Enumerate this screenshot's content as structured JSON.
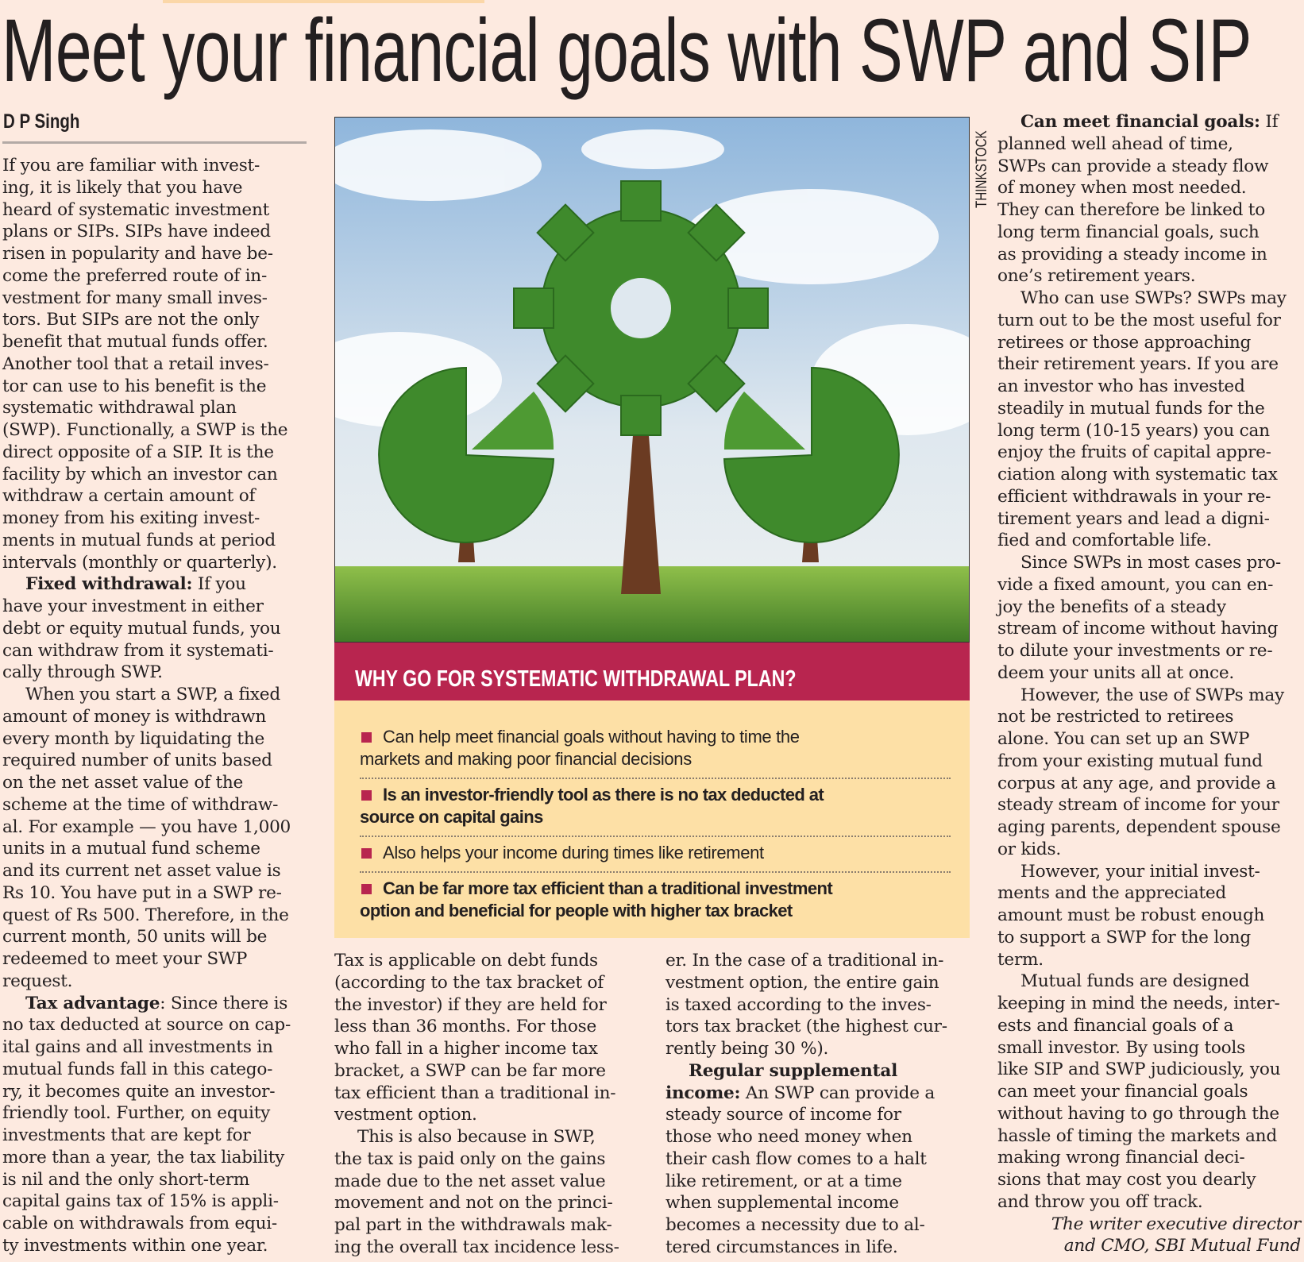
{
  "headline": "Meet your financial goals with SWP and SIP",
  "byline": "D P Singh",
  "photo_credit": "THINKSTOCK",
  "photo_description_icon": "gear-tree-illustration",
  "colors": {
    "background": "#fdeae0",
    "band": "#b8254f",
    "box": "#fde0a6"
  },
  "sidebar_box": {
    "title": "WHY GO FOR SYSTEMATIC WITHDRAWAL PLAN?",
    "bullets": [
      {
        "bold": false,
        "lines": [
          "Can help meet financial goals without having to time the",
          "markets and making poor financial decisions"
        ]
      },
      {
        "bold": true,
        "lines": [
          "Is an investor-friendly tool as there is no tax deducted at",
          "source on capital gains"
        ]
      },
      {
        "bold": false,
        "lines": [
          "Also helps your income during times like retirement"
        ]
      },
      {
        "bold": true,
        "lines": [
          "Can be far more tax efficient than a traditional investment",
          "option and beneficial for people with higher tax bracket"
        ]
      }
    ]
  },
  "columns": {
    "left": [
      {
        "continued": true,
        "lines": [
          "If you are familiar with invest-",
          "ing, it is likely that you have",
          "heard of systematic investment",
          "plans or SIPs. SIPs have indeed",
          "risen in popularity and have be-",
          "come the preferred route of in-",
          "vestment for many small inves-",
          "tors. But SIPs are not the only",
          "benefit that mutual funds offer.",
          "Another tool that a retail inves-",
          "tor can use to his benefit is the",
          "systematic withdrawal plan",
          "(SWP). Functionally, a SWP is the",
          "direct opposite of a SIP. It is the",
          "facility by which an investor can",
          "withdraw a certain amount of",
          "money from his exiting invest-",
          "ments in mutual funds at period",
          "intervals (monthly or quarterly)."
        ]
      },
      {
        "lines": [
          {
            "b": "Fixed withdrawal:",
            "t": " If you"
          },
          "have your investment in either",
          "debt or equity mutual funds, you",
          "can withdraw from it systemati-",
          "cally through SWP."
        ]
      },
      {
        "lines": [
          "When you start a SWP, a fixed",
          "amount of money is withdrawn",
          "every month by liquidating the",
          "required number of units based",
          "on the net asset value of the",
          "scheme at the time of withdraw-",
          "al. For example — you have 1,000",
          "units in a mutual fund scheme",
          "and its current net asset value is",
          "Rs 10. You have put in a SWP re-",
          "quest of Rs 500. Therefore, in the",
          "current month, 50 units will be",
          "redeemed to meet your SWP",
          "request."
        ]
      },
      {
        "lines": [
          {
            "b": "Tax advantage",
            "t": ": Since there is"
          },
          "no tax deducted at source on cap-",
          "ital gains and all investments in",
          "mutual funds fall in this catego-",
          "ry, it becomes quite an investor-",
          "friendly tool. Further, on equity",
          "investments that are kept for",
          "more than a year, the tax liability",
          "is nil and the only short-term",
          "capital gains tax of 15% is appli-",
          "cable on withdrawals from equi-",
          "ty investments within one year."
        ]
      }
    ],
    "midA": [
      {
        "continued": true,
        "lines": [
          "Tax is applicable on debt funds",
          "(according to the tax bracket of",
          "the investor) if they are held for",
          "less than 36 months. For those",
          "who fall in a higher income tax",
          "bracket, a SWP can be far more",
          "tax efficient than a traditional in-",
          "vestment option."
        ]
      },
      {
        "lines": [
          "This is also because in SWP,",
          "the tax is paid only on the gains",
          "made due to the net asset value",
          "movement and not on the princi-",
          "pal part in the withdrawals mak-",
          "ing the overall tax incidence less-"
        ]
      }
    ],
    "midB": [
      {
        "continued": true,
        "lines": [
          "er. In the case of a traditional in-",
          "vestment option, the entire gain",
          "is taxed according to the inves-",
          "tors tax bracket (the highest cur-",
          "rently being 30 %)."
        ]
      },
      {
        "lines": [
          {
            "b": "Regular supplemental",
            "t": ""
          },
          {
            "b": "income:",
            "t": " An SWP can provide a"
          },
          "steady source of income for",
          "those who need money when",
          "their cash flow comes to a halt",
          "like retirement, or at a time",
          "when supplemental income",
          "becomes a necessity due to al-",
          "tered circumstances in life."
        ]
      }
    ],
    "right": [
      {
        "lines": [
          {
            "b": "Can meet financial goals:",
            "t": " If"
          },
          "planned well ahead of time,",
          "SWPs can provide a steady flow",
          "of money when most needed.",
          "They can therefore be linked to",
          "long term financial goals, such",
          "as providing a steady income in",
          "one’s retirement years."
        ]
      },
      {
        "lines": [
          "Who can use SWPs? SWPs may",
          "turn out to be the most useful for",
          "retirees or those approaching",
          "their retirement years. If you are",
          "an investor who has invested",
          "steadily in mutual funds for the",
          "long term (10-15 years) you can",
          "enjoy the fruits of capital appre-",
          "ciation along with systematic tax",
          "efficient withdrawals in your re-",
          "tirement years and lead a digni-",
          "fied and comfortable life."
        ]
      },
      {
        "lines": [
          "Since SWPs in most cases pro-",
          "vide a fixed amount, you can en-",
          "joy the benefits of a steady",
          "stream of income without having",
          "to dilute your investments or re-",
          "deem your units all at once."
        ]
      },
      {
        "lines": [
          "However, the use of SWPs may",
          "not be restricted to retirees",
          "alone. You can set up an SWP",
          "from your existing mutual fund",
          "corpus at any age, and provide a",
          "steady stream of income for your",
          "aging parents, dependent spouse",
          "or kids."
        ]
      },
      {
        "lines": [
          "However, your initial invest-",
          "ments and the appreciated",
          "amount must be robust enough",
          "to support a SWP for the long",
          "term."
        ]
      },
      {
        "lines": [
          "Mutual funds are designed",
          "keeping in mind the needs, inter-",
          "ests and financial goals of a",
          "small investor. By using tools",
          "like SIP and SWP judiciously, you",
          "can meet your financial goals",
          "without having to go through the",
          "hassle of timing the markets and",
          "making wrong financial deci-",
          "sions that may cost you dearly",
          "and throw you off track."
        ]
      }
    ]
  },
  "author_note": [
    "The writer executive director",
    "and CMO, SBI Mutual Fund"
  ]
}
